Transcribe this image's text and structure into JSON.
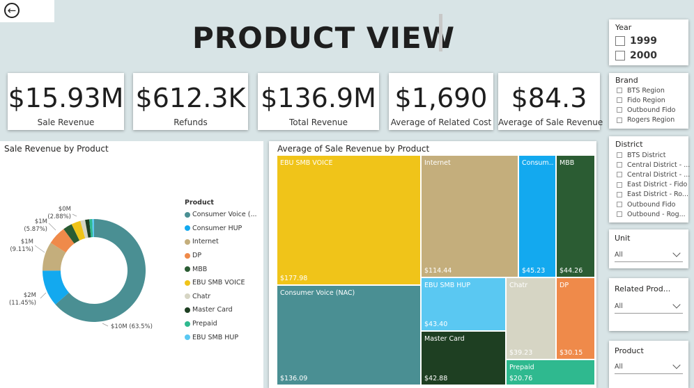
{
  "page": {
    "title": "PRODUCT VIEW"
  },
  "kpis": [
    {
      "value": "$15.93M",
      "label": "Sale Revenue"
    },
    {
      "value": "$612.3K",
      "label": "Refunds"
    },
    {
      "value": "$136.9M",
      "label": "Total Revenue"
    },
    {
      "value": "$1,690",
      "label": "Average of Related Cost"
    },
    {
      "value": "$84.3",
      "label": "Average of Sale Revenue"
    }
  ],
  "donut": {
    "title": "Sale Revenue by Product",
    "legend_title": "Product",
    "legend": [
      {
        "label": "Consumer Voice (...",
        "color": "#4a8f93"
      },
      {
        "label": "Consumer HUP",
        "color": "#13a9ef"
      },
      {
        "label": "Internet",
        "color": "#c4ae7c"
      },
      {
        "label": "DP",
        "color": "#ef8a4a"
      },
      {
        "label": "MBB",
        "color": "#2b5c33"
      },
      {
        "label": "EBU SMB VOICE",
        "color": "#f0c419"
      },
      {
        "label": "Chatr",
        "color": "#d6d5c4"
      },
      {
        "label": "Master Card",
        "color": "#1e3f22"
      },
      {
        "label": "Prepaid",
        "color": "#2fb98f"
      },
      {
        "label": "EBU SMB HUP",
        "color": "#5ac8f2"
      }
    ],
    "data_labels": {
      "zero": "$0M",
      "zero_pct": "(2.88%)",
      "one_a": "$1M",
      "one_a_pct": "(5.87%)",
      "one_b": "$1M",
      "one_b_pct": "(9.11%)",
      "two": "$2M",
      "two_pct": "(11.45%)",
      "ten": "$10M (63.5%)"
    }
  },
  "chart_data": {
    "type": "pie",
    "title": "Sale Revenue by Product",
    "legend_title": "Product",
    "categories": [
      "Consumer Voice (NAC)",
      "Consumer HUP",
      "Internet",
      "DP",
      "MBB",
      "EBU SMB VOICE",
      "Chatr",
      "Master Card",
      "Prepaid",
      "EBU SMB HUP"
    ],
    "values": [
      63.5,
      11.45,
      9.11,
      5.87,
      2.88,
      2.9,
      1.5,
      1.3,
      0.9,
      0.59
    ],
    "value_unit": "%",
    "treemap": {
      "title": "Average of Sale Revenue by Product",
      "type": "treemap",
      "categories": [
        "EBU SMB VOICE",
        "Consumer Voice (NAC)",
        "Internet",
        "EBU SMB HUP",
        "Master Card",
        "Consumer HUP",
        "MBB",
        "Chatr",
        "DP",
        "Prepaid"
      ],
      "values": [
        177.98,
        136.09,
        114.44,
        43.4,
        42.88,
        45.23,
        44.26,
        39.23,
        30.15,
        20.76
      ]
    }
  },
  "treemap": {
    "title": "Average of Sale Revenue by Product",
    "tiles": [
      {
        "name": "EBU SMB VOICE",
        "value": "$177.98",
        "color": "#f0c419"
      },
      {
        "name": "Consumer Voice (NAC)",
        "value": "$136.09",
        "color": "#4a8f93"
      },
      {
        "name": "Internet",
        "value": "$114.44",
        "color": "#c4ae7c"
      },
      {
        "name": "Consum...",
        "value": "$45.23",
        "color": "#13a9ef"
      },
      {
        "name": "MBB",
        "value": "$44.26",
        "color": "#2b5c33"
      },
      {
        "name": "EBU SMB HUP",
        "value": "$43.40",
        "color": "#5ac8f2"
      },
      {
        "name": "Chatr",
        "value": "$39.23",
        "color": "#d6d5c4"
      },
      {
        "name": "DP",
        "value": "$30.15",
        "color": "#ef8a4a"
      },
      {
        "name": "Master Card",
        "value": "$42.88",
        "color": "#1e3f22"
      },
      {
        "name": "Prepaid",
        "value": "$20.76",
        "color": "#2fb98f"
      }
    ]
  },
  "slicers": {
    "year": {
      "title": "Year",
      "options": [
        "1999",
        "2000"
      ]
    },
    "brand": {
      "title": "Brand",
      "options": [
        "BTS Region",
        "Fido Region",
        "Outbound Fido",
        "Rogers Region"
      ]
    },
    "district": {
      "title": "District",
      "options": [
        "BTS District",
        "Central District - ...",
        "Central District - ...",
        "East District - Fido",
        "East District - Ro...",
        "Outbound Fido",
        "Outbound - Rog..."
      ]
    },
    "unit": {
      "title": "Unit",
      "value": "All"
    },
    "related_prod": {
      "title": "Related Prod...",
      "value": "All"
    },
    "product": {
      "title": "Product",
      "value": "All"
    }
  }
}
